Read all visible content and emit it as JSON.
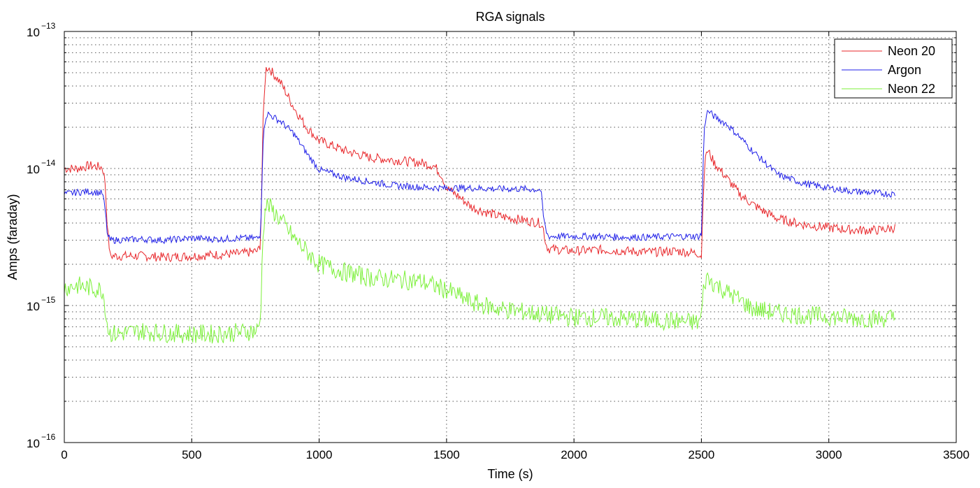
{
  "chart_data": {
    "type": "line",
    "title": "RGA signals",
    "xlabel": "Time (s)",
    "ylabel": "Amps (faraday)",
    "xlim": [
      0,
      3500
    ],
    "ylim": [
      1e-16,
      1e-13
    ],
    "yscale": "log",
    "grid": true,
    "legend_position": "top-right",
    "x_ticks": [
      0,
      500,
      1000,
      1500,
      2000,
      2500,
      3000,
      3500
    ],
    "x_tick_labels": [
      "0",
      "500",
      "1000",
      "1500",
      "2000",
      "2500",
      "3000",
      "3500"
    ],
    "y_ticks": [
      1e-16,
      1e-15,
      1e-14,
      1e-13
    ],
    "y_tick_labels": [
      {
        "base": "10",
        "exp": "−16"
      },
      {
        "base": "10",
        "exp": "−15"
      },
      {
        "base": "10",
        "exp": "−14"
      },
      {
        "base": "10",
        "exp": "−13"
      }
    ],
    "series": [
      {
        "name": "Neon 20",
        "color": "#e8262a",
        "x": [
          0,
          50,
          100,
          150,
          160,
          170,
          180,
          200,
          300,
          400,
          500,
          600,
          700,
          760,
          770,
          780,
          790,
          800,
          850,
          900,
          950,
          1000,
          1100,
          1200,
          1300,
          1400,
          1450,
          1480,
          1500,
          1550,
          1600,
          1700,
          1800,
          1870,
          1880,
          1890,
          1900,
          2000,
          2100,
          2200,
          2300,
          2400,
          2490,
          2500,
          2510,
          2520,
          2530,
          2550,
          2600,
          2650,
          2700,
          2750,
          2800,
          2900,
          3000,
          3100,
          3200,
          3260
        ],
        "y": [
          1e-14,
          1e-14,
          1.05e-14,
          1.02e-14,
          8e-15,
          3.5e-15,
          2.3e-15,
          2.3e-15,
          2.3e-15,
          2.25e-15,
          2.3e-15,
          2.35e-15,
          2.4e-15,
          2.5e-15,
          2.8e-15,
          2.2e-14,
          5.3e-14,
          5.5e-14,
          4.2e-14,
          2.8e-14,
          2e-14,
          1.6e-14,
          1.35e-14,
          1.2e-14,
          1.15e-14,
          1.1e-14,
          1.05e-14,
          9e-15,
          7.2e-15,
          6.2e-15,
          5.2e-15,
          4.5e-15,
          4.2e-15,
          4e-15,
          3.6e-15,
          2.8e-15,
          2.6e-15,
          2.5e-15,
          2.55e-15,
          2.5e-15,
          2.45e-15,
          2.5e-15,
          2.4e-15,
          2.3e-15,
          9e-15,
          1.35e-14,
          1.3e-14,
          1.1e-14,
          8.5e-15,
          6.5e-15,
          5.5e-15,
          4.8e-15,
          4.3e-15,
          3.9e-15,
          3.7e-15,
          3.55e-15,
          3.55e-15,
          3.7e-15
        ]
      },
      {
        "name": "Argon",
        "color": "#1f1fe8",
        "x": [
          0,
          50,
          100,
          150,
          160,
          170,
          180,
          200,
          300,
          400,
          500,
          600,
          700,
          760,
          770,
          780,
          790,
          800,
          850,
          900,
          950,
          1000,
          1100,
          1200,
          1300,
          1400,
          1500,
          1600,
          1700,
          1800,
          1870,
          1880,
          1890,
          1900,
          2000,
          2100,
          2200,
          2300,
          2400,
          2490,
          2500,
          2510,
          2520,
          2530,
          2550,
          2600,
          2650,
          2700,
          2750,
          2800,
          2900,
          3000,
          3100,
          3200,
          3260
        ],
        "y": [
          6.5e-15,
          6.7e-15,
          6.8e-15,
          6.6e-15,
          5e-15,
          3.2e-15,
          3e-15,
          3e-15,
          3.05e-15,
          3e-15,
          3.1e-15,
          3.05e-15,
          3.1e-15,
          3.1e-15,
          3.3e-15,
          1.6e-14,
          2.4e-14,
          2.5e-14,
          2.2e-14,
          1.8e-14,
          1.3e-14,
          9.8e-15,
          8.6e-15,
          8e-15,
          7.5e-15,
          7.3e-15,
          7.2e-15,
          7.2e-15,
          7.1e-15,
          7.1e-15,
          7e-15,
          4.5e-15,
          3.5e-15,
          3.2e-15,
          3.2e-15,
          3.2e-15,
          3.15e-15,
          3.15e-15,
          3.2e-15,
          3.2e-15,
          3.3e-15,
          1.8e-14,
          2.55e-14,
          2.6e-14,
          2.4e-14,
          2.1e-14,
          1.7e-14,
          1.35e-14,
          1.1e-14,
          9e-15,
          7.8e-15,
          7.2e-15,
          6.8e-15,
          6.6e-15,
          6.5e-15
        ]
      },
      {
        "name": "Neon 22",
        "color": "#7cf03a",
        "x": [
          0,
          50,
          100,
          150,
          160,
          170,
          180,
          200,
          300,
          400,
          500,
          600,
          700,
          760,
          770,
          780,
          790,
          800,
          850,
          900,
          950,
          1000,
          1100,
          1200,
          1300,
          1400,
          1500,
          1600,
          1700,
          1800,
          1900,
          2000,
          2100,
          2200,
          2300,
          2400,
          2490,
          2500,
          2510,
          2520,
          2530,
          2550,
          2600,
          2650,
          2700,
          2800,
          2900,
          3000,
          3100,
          3200,
          3260
        ],
        "y": [
          1.35e-15,
          1.4e-15,
          1.35e-15,
          1.3e-15,
          1e-15,
          7e-16,
          6.3e-16,
          6.2e-16,
          6.5e-16,
          6.3e-16,
          6.2e-16,
          6.2e-16,
          6.4e-16,
          6.6e-16,
          8e-16,
          3.5e-15,
          5.3e-15,
          5.4e-15,
          4.2e-15,
          3.1e-15,
          2.5e-15,
          2e-15,
          1.75e-15,
          1.6e-15,
          1.55e-15,
          1.5e-15,
          1.3e-15,
          1.05e-15,
          9.5e-16,
          9e-16,
          8.5e-16,
          8.2e-16,
          8.2e-16,
          8e-16,
          7.8e-16,
          7.7e-16,
          7.5e-16,
          8.5e-16,
          1.4e-15,
          1.6e-15,
          1.55e-15,
          1.45e-15,
          1.25e-15,
          1.1e-15,
          9.5e-16,
          8.8e-16,
          8.5e-16,
          8.3e-16,
          8.1e-16,
          8e-16,
          8.2e-16
        ]
      }
    ]
  }
}
